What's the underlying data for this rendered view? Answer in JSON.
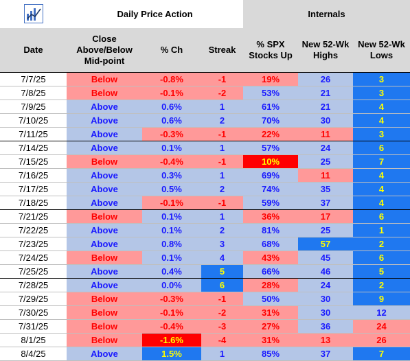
{
  "header": {
    "group_daily": "Daily Price Action",
    "group_internals": "Internals",
    "col_date": "Date",
    "col_close": "Close Above/Below Mid-point",
    "col_pct": "% Ch",
    "col_streak": "Streak",
    "col_spx": "% SPX Stocks Up",
    "col_highs": "New 52-Wk Highs",
    "col_lows": "New 52-Wk Lows"
  },
  "icons": {
    "logo": "bar-chart-logo-icon"
  },
  "colors": {
    "red_bg": "#ff9999",
    "blue_bg": "#b4c6e7",
    "deep_red_bg": "#ff0000",
    "deep_blue_bg": "#1f78f0",
    "red_text": "#ff0000",
    "blue_text": "#1a1aff",
    "yellow_text": "#ffff00",
    "header_gray": "#d9d9d9"
  },
  "rows": [
    {
      "date": "7/7/25",
      "close": "Below",
      "pct": "-0.8%",
      "streak": "-1",
      "spx": "19%",
      "highs": "26",
      "lows": "3"
    },
    {
      "date": "7/8/25",
      "close": "Below",
      "pct": "-0.1%",
      "streak": "-2",
      "spx": "53%",
      "highs": "21",
      "lows": "3"
    },
    {
      "date": "7/9/25",
      "close": "Above",
      "pct": "0.6%",
      "streak": "1",
      "spx": "61%",
      "highs": "21",
      "lows": "4"
    },
    {
      "date": "7/10/25",
      "close": "Above",
      "pct": "0.6%",
      "streak": "2",
      "spx": "70%",
      "highs": "30",
      "lows": "4"
    },
    {
      "date": "7/11/25",
      "close": "Above",
      "pct": "-0.3%",
      "streak": "-1",
      "spx": "22%",
      "highs": "11",
      "lows": "3"
    },
    {
      "date": "7/14/25",
      "close": "Above",
      "pct": "0.1%",
      "streak": "1",
      "spx": "57%",
      "highs": "24",
      "lows": "6"
    },
    {
      "date": "7/15/25",
      "close": "Below",
      "pct": "-0.4%",
      "streak": "-1",
      "spx": "10%",
      "highs": "25",
      "lows": "7"
    },
    {
      "date": "7/16/25",
      "close": "Above",
      "pct": "0.3%",
      "streak": "1",
      "spx": "69%",
      "highs": "11",
      "lows": "4"
    },
    {
      "date": "7/17/25",
      "close": "Above",
      "pct": "0.5%",
      "streak": "2",
      "spx": "74%",
      "highs": "35",
      "lows": "4"
    },
    {
      "date": "7/18/25",
      "close": "Above",
      "pct": "-0.1%",
      "streak": "-1",
      "spx": "59%",
      "highs": "37",
      "lows": "4"
    },
    {
      "date": "7/21/25",
      "close": "Below",
      "pct": "0.1%",
      "streak": "1",
      "spx": "36%",
      "highs": "17",
      "lows": "6"
    },
    {
      "date": "7/22/25",
      "close": "Above",
      "pct": "0.1%",
      "streak": "2",
      "spx": "81%",
      "highs": "25",
      "lows": "1"
    },
    {
      "date": "7/23/25",
      "close": "Above",
      "pct": "0.8%",
      "streak": "3",
      "spx": "68%",
      "highs": "57",
      "lows": "2"
    },
    {
      "date": "7/24/25",
      "close": "Below",
      "pct": "0.1%",
      "streak": "4",
      "spx": "43%",
      "highs": "45",
      "lows": "6"
    },
    {
      "date": "7/25/25",
      "close": "Above",
      "pct": "0.4%",
      "streak": "5",
      "spx": "66%",
      "highs": "46",
      "lows": "5"
    },
    {
      "date": "7/28/25",
      "close": "Above",
      "pct": "0.0%",
      "streak": "6",
      "spx": "28%",
      "highs": "24",
      "lows": "2"
    },
    {
      "date": "7/29/25",
      "close": "Below",
      "pct": "-0.3%",
      "streak": "-1",
      "spx": "50%",
      "highs": "30",
      "lows": "9"
    },
    {
      "date": "7/30/25",
      "close": "Below",
      "pct": "-0.1%",
      "streak": "-2",
      "spx": "31%",
      "highs": "30",
      "lows": "12"
    },
    {
      "date": "7/31/25",
      "close": "Below",
      "pct": "-0.4%",
      "streak": "-3",
      "spx": "27%",
      "highs": "36",
      "lows": "24"
    },
    {
      "date": "8/1/25",
      "close": "Below",
      "pct": "-1.6%",
      "streak": "-4",
      "spx": "31%",
      "highs": "13",
      "lows": "26"
    },
    {
      "date": "8/4/25",
      "close": "Above",
      "pct": "1.5%",
      "streak": "1",
      "spx": "85%",
      "highs": "37",
      "lows": "7"
    }
  ]
}
